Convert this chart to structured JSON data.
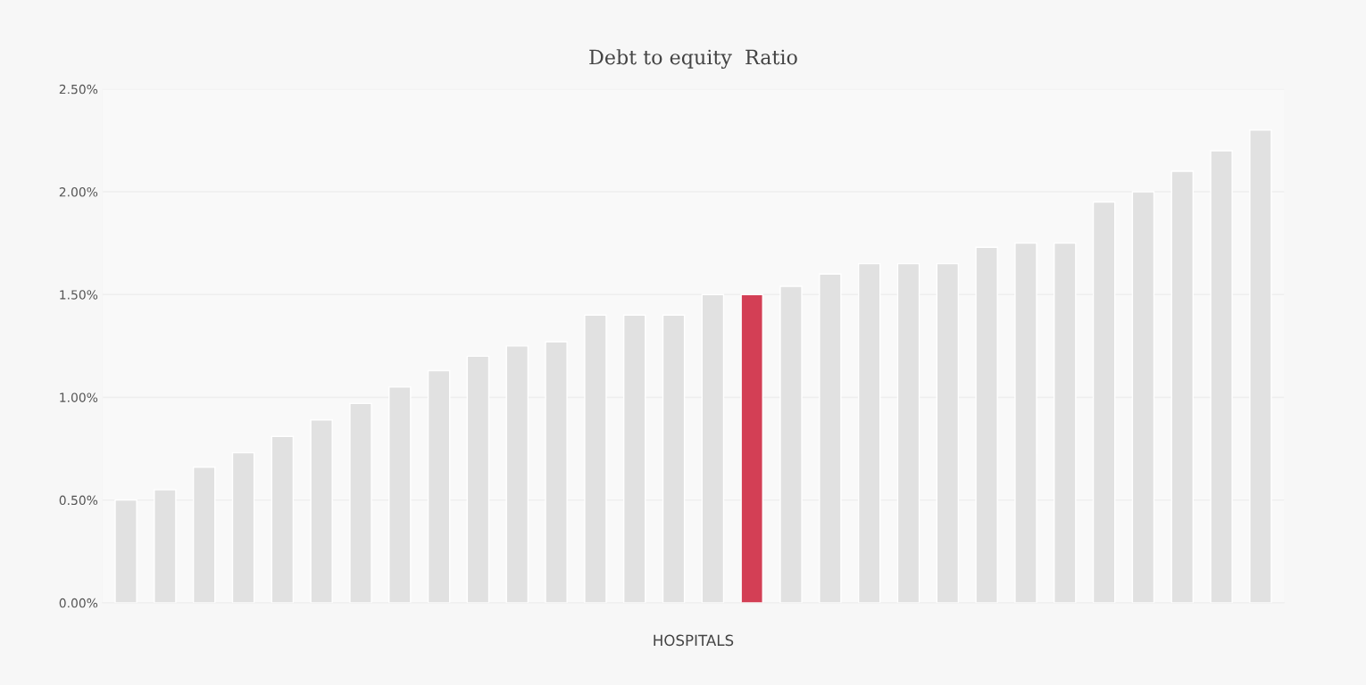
{
  "chart_data": {
    "type": "bar",
    "title": "Debt to equity  Ratio",
    "xlabel": "HOSPITALS",
    "categories": [
      null,
      null,
      null,
      null,
      null,
      null,
      null,
      null,
      null,
      null,
      null,
      null,
      null,
      null,
      null,
      null,
      null,
      null,
      null,
      null,
      null,
      null,
      null,
      null,
      null,
      null,
      null,
      null,
      null,
      null
    ],
    "values": [
      0.5,
      0.55,
      0.66,
      0.73,
      0.81,
      0.89,
      0.97,
      1.05,
      1.13,
      1.2,
      1.25,
      1.27,
      1.4,
      1.4,
      1.4,
      1.5,
      1.5,
      1.54,
      1.6,
      1.65,
      1.65,
      1.65,
      1.73,
      1.75,
      1.75,
      1.95,
      2.0,
      2.1,
      2.2,
      2.3
    ],
    "colors": [
      "#e1e1e1",
      "#e1e1e1",
      "#e1e1e1",
      "#e1e1e1",
      "#e1e1e1",
      "#e1e1e1",
      "#e1e1e1",
      "#e1e1e1",
      "#e1e1e1",
      "#e1e1e1",
      "#e1e1e1",
      "#e1e1e1",
      "#e1e1e1",
      "#e1e1e1",
      "#e1e1e1",
      "#e1e1e1",
      "#d33f55",
      "#e1e1e1",
      "#e1e1e1",
      "#e1e1e1",
      "#e1e1e1",
      "#e1e1e1",
      "#e1e1e1",
      "#e1e1e1",
      "#e1e1e1",
      "#e1e1e1",
      "#e1e1e1",
      "#e1e1e1",
      "#e1e1e1",
      "#e1e1e1"
    ],
    "ylim": [
      0,
      2.5
    ],
    "yticks": [
      {
        "value": 0,
        "label": "0.00%"
      },
      {
        "value": 0.5,
        "label": "0.50%"
      },
      {
        "value": 1.0,
        "label": "1.00%"
      },
      {
        "value": 1.5,
        "label": "1.50%"
      },
      {
        "value": 2.0,
        "label": "2.00%"
      },
      {
        "value": 2.5,
        "label": "2.50%"
      }
    ],
    "grid": "y"
  }
}
